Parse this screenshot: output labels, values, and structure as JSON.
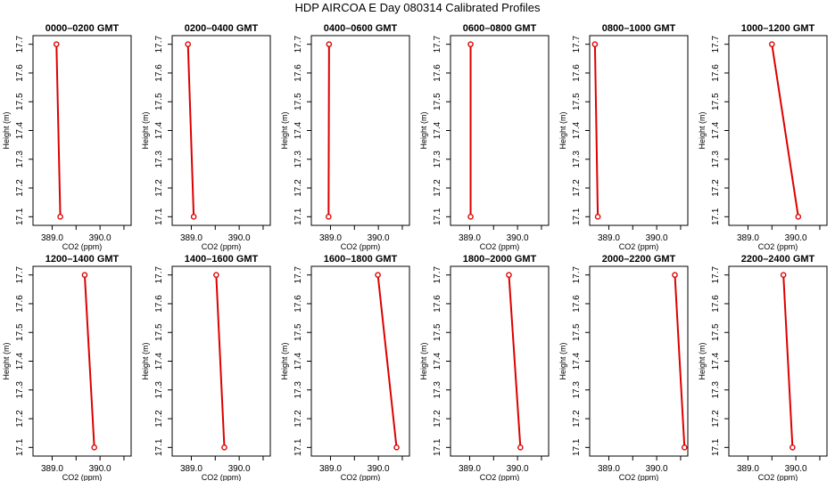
{
  "title": "HDP AIRCOA E  Day 080314  Calibrated Profiles",
  "colors": {
    "series": "#dd0000",
    "axis": "#000000"
  },
  "chart_data": [
    {
      "type": "line",
      "title": "0000–0200 GMT",
      "xlabel": "CO2 (ppm)",
      "ylabel": "Height (m)",
      "xlim": [
        388.6,
        390.65
      ],
      "ylim": [
        17.07,
        17.73
      ],
      "xticks": [
        389.0,
        389.5,
        390.0,
        390.5
      ],
      "xtick_labels": [
        "389.0",
        "",
        "390.0",
        ""
      ],
      "yticks": [
        17.1,
        17.2,
        17.3,
        17.4,
        17.5,
        17.6,
        17.7
      ],
      "ytick_labels": [
        "17.1",
        "17.2",
        "17.3",
        "17.4",
        "17.5",
        "17.6",
        "17.7"
      ],
      "points": [
        {
          "x": 389.09,
          "y": 17.7
        },
        {
          "x": 389.17,
          "y": 17.1
        }
      ]
    },
    {
      "type": "line",
      "title": "0200–0400 GMT",
      "xlabel": "CO2 (ppm)",
      "ylabel": "Height (m)",
      "xlim": [
        388.6,
        390.65
      ],
      "ylim": [
        17.07,
        17.73
      ],
      "xticks": [
        389.0,
        389.5,
        390.0,
        390.5
      ],
      "xtick_labels": [
        "389.0",
        "",
        "390.0",
        ""
      ],
      "yticks": [
        17.1,
        17.2,
        17.3,
        17.4,
        17.5,
        17.6,
        17.7
      ],
      "ytick_labels": [
        "17.1",
        "17.2",
        "17.3",
        "17.4",
        "17.5",
        "17.6",
        "17.7"
      ],
      "points": [
        {
          "x": 388.93,
          "y": 17.7
        },
        {
          "x": 389.05,
          "y": 17.1
        }
      ]
    },
    {
      "type": "line",
      "title": "0400–0600 GMT",
      "xlabel": "CO2 (ppm)",
      "ylabel": "Height (m)",
      "xlim": [
        388.6,
        390.65
      ],
      "ylim": [
        17.07,
        17.73
      ],
      "xticks": [
        389.0,
        389.5,
        390.0,
        390.5
      ],
      "xtick_labels": [
        "389.0",
        "",
        "390.0",
        ""
      ],
      "yticks": [
        17.1,
        17.2,
        17.3,
        17.4,
        17.5,
        17.6,
        17.7
      ],
      "ytick_labels": [
        "17.1",
        "17.2",
        "17.3",
        "17.4",
        "17.5",
        "17.6",
        "17.7"
      ],
      "points": [
        {
          "x": 388.97,
          "y": 17.7
        },
        {
          "x": 388.96,
          "y": 17.1
        }
      ]
    },
    {
      "type": "line",
      "title": "0600–0800 GMT",
      "xlabel": "CO2 (ppm)",
      "ylabel": "Height (m)",
      "xlim": [
        388.6,
        390.65
      ],
      "ylim": [
        17.07,
        17.73
      ],
      "xticks": [
        389.0,
        389.5,
        390.0,
        390.5
      ],
      "xtick_labels": [
        "389.0",
        "",
        "390.0",
        ""
      ],
      "yticks": [
        17.1,
        17.2,
        17.3,
        17.4,
        17.5,
        17.6,
        17.7
      ],
      "ytick_labels": [
        "17.1",
        "17.2",
        "17.3",
        "17.4",
        "17.5",
        "17.6",
        "17.7"
      ],
      "points": [
        {
          "x": 389.02,
          "y": 17.7
        },
        {
          "x": 389.02,
          "y": 17.1
        }
      ]
    },
    {
      "type": "line",
      "title": "0800–1000 GMT",
      "xlabel": "CO2 (ppm)",
      "ylabel": "Height (m)",
      "xlim": [
        388.6,
        390.65
      ],
      "ylim": [
        17.07,
        17.73
      ],
      "xticks": [
        389.0,
        389.5,
        390.0,
        390.5
      ],
      "xtick_labels": [
        "389.0",
        "",
        "390.0",
        ""
      ],
      "yticks": [
        17.1,
        17.2,
        17.3,
        17.4,
        17.5,
        17.6,
        17.7
      ],
      "ytick_labels": [
        "17.1",
        "17.2",
        "17.3",
        "17.4",
        "17.5",
        "17.6",
        "17.7"
      ],
      "points": [
        {
          "x": 388.71,
          "y": 17.7
        },
        {
          "x": 388.77,
          "y": 17.1
        }
      ]
    },
    {
      "type": "line",
      "title": "1000–1200 GMT",
      "xlabel": "CO2 (ppm)",
      "ylabel": "Height (m)",
      "xlim": [
        388.6,
        390.65
      ],
      "ylim": [
        17.07,
        17.73
      ],
      "xticks": [
        389.0,
        389.5,
        390.0,
        390.5
      ],
      "xtick_labels": [
        "389.0",
        "",
        "390.0",
        ""
      ],
      "yticks": [
        17.1,
        17.2,
        17.3,
        17.4,
        17.5,
        17.6,
        17.7
      ],
      "ytick_labels": [
        "17.1",
        "17.2",
        "17.3",
        "17.4",
        "17.5",
        "17.6",
        "17.7"
      ],
      "points": [
        {
          "x": 389.5,
          "y": 17.7
        },
        {
          "x": 390.05,
          "y": 17.1
        }
      ]
    },
    {
      "type": "line",
      "title": "1200–1400 GMT",
      "xlabel": "CO2 (ppm)",
      "ylabel": "Height (m)",
      "xlim": [
        388.6,
        390.65
      ],
      "ylim": [
        17.07,
        17.73
      ],
      "xticks": [
        389.0,
        389.5,
        390.0,
        390.5
      ],
      "xtick_labels": [
        "389.0",
        "",
        "390.0",
        ""
      ],
      "yticks": [
        17.1,
        17.2,
        17.3,
        17.4,
        17.5,
        17.6,
        17.7
      ],
      "ytick_labels": [
        "17.1",
        "17.2",
        "17.3",
        "17.4",
        "17.5",
        "17.6",
        "17.7"
      ],
      "points": [
        {
          "x": 389.68,
          "y": 17.7
        },
        {
          "x": 389.88,
          "y": 17.1
        }
      ]
    },
    {
      "type": "line",
      "title": "1400–1600 GMT",
      "xlabel": "CO2 (ppm)",
      "ylabel": "Height (m)",
      "xlim": [
        388.6,
        390.65
      ],
      "ylim": [
        17.07,
        17.73
      ],
      "xticks": [
        389.0,
        389.5,
        390.0,
        390.5
      ],
      "xtick_labels": [
        "389.0",
        "",
        "390.0",
        ""
      ],
      "yticks": [
        17.1,
        17.2,
        17.3,
        17.4,
        17.5,
        17.6,
        17.7
      ],
      "ytick_labels": [
        "17.1",
        "17.2",
        "17.3",
        "17.4",
        "17.5",
        "17.6",
        "17.7"
      ],
      "points": [
        {
          "x": 389.52,
          "y": 17.7
        },
        {
          "x": 389.69,
          "y": 17.1
        }
      ]
    },
    {
      "type": "line",
      "title": "1600–1800 GMT",
      "xlabel": "CO2 (ppm)",
      "ylabel": "Height (m)",
      "xlim": [
        388.6,
        390.65
      ],
      "ylim": [
        17.07,
        17.73
      ],
      "xticks": [
        389.0,
        389.5,
        390.0,
        390.5
      ],
      "xtick_labels": [
        "389.0",
        "",
        "390.0",
        ""
      ],
      "yticks": [
        17.1,
        17.2,
        17.3,
        17.4,
        17.5,
        17.6,
        17.7
      ],
      "ytick_labels": [
        "17.1",
        "17.2",
        "17.3",
        "17.4",
        "17.5",
        "17.6",
        "17.7"
      ],
      "points": [
        {
          "x": 389.99,
          "y": 17.7
        },
        {
          "x": 390.38,
          "y": 17.1
        }
      ]
    },
    {
      "type": "line",
      "title": "1800–2000 GMT",
      "xlabel": "CO2 (ppm)",
      "ylabel": "Height (m)",
      "xlim": [
        388.6,
        390.65
      ],
      "ylim": [
        17.07,
        17.73
      ],
      "xticks": [
        389.0,
        389.5,
        390.0,
        390.5
      ],
      "xtick_labels": [
        "389.0",
        "",
        "390.0",
        ""
      ],
      "yticks": [
        17.1,
        17.2,
        17.3,
        17.4,
        17.5,
        17.6,
        17.7
      ],
      "ytick_labels": [
        "17.1",
        "17.2",
        "17.3",
        "17.4",
        "17.5",
        "17.6",
        "17.7"
      ],
      "points": [
        {
          "x": 389.82,
          "y": 17.7
        },
        {
          "x": 390.06,
          "y": 17.1
        }
      ]
    },
    {
      "type": "line",
      "title": "2000–2200 GMT",
      "xlabel": "CO2 (ppm)",
      "ylabel": "Height (m)",
      "xlim": [
        388.6,
        390.65
      ],
      "ylim": [
        17.07,
        17.73
      ],
      "xticks": [
        389.0,
        389.5,
        390.0,
        390.5
      ],
      "xtick_labels": [
        "389.0",
        "",
        "390.0",
        ""
      ],
      "yticks": [
        17.1,
        17.2,
        17.3,
        17.4,
        17.5,
        17.6,
        17.7
      ],
      "ytick_labels": [
        "17.1",
        "17.2",
        "17.3",
        "17.4",
        "17.5",
        "17.6",
        "17.7"
      ],
      "points": [
        {
          "x": 390.38,
          "y": 17.7
        },
        {
          "x": 390.58,
          "y": 17.1
        }
      ]
    },
    {
      "type": "line",
      "title": "2200–2400 GMT",
      "xlabel": "CO2 (ppm)",
      "ylabel": "Height (m)",
      "xlim": [
        388.6,
        390.65
      ],
      "ylim": [
        17.07,
        17.73
      ],
      "xticks": [
        389.0,
        389.5,
        390.0,
        390.5
      ],
      "xtick_labels": [
        "389.0",
        "",
        "390.0",
        ""
      ],
      "yticks": [
        17.1,
        17.2,
        17.3,
        17.4,
        17.5,
        17.6,
        17.7
      ],
      "ytick_labels": [
        "17.1",
        "17.2",
        "17.3",
        "17.4",
        "17.5",
        "17.6",
        "17.7"
      ],
      "points": [
        {
          "x": 389.74,
          "y": 17.7
        },
        {
          "x": 389.93,
          "y": 17.1
        }
      ]
    }
  ]
}
